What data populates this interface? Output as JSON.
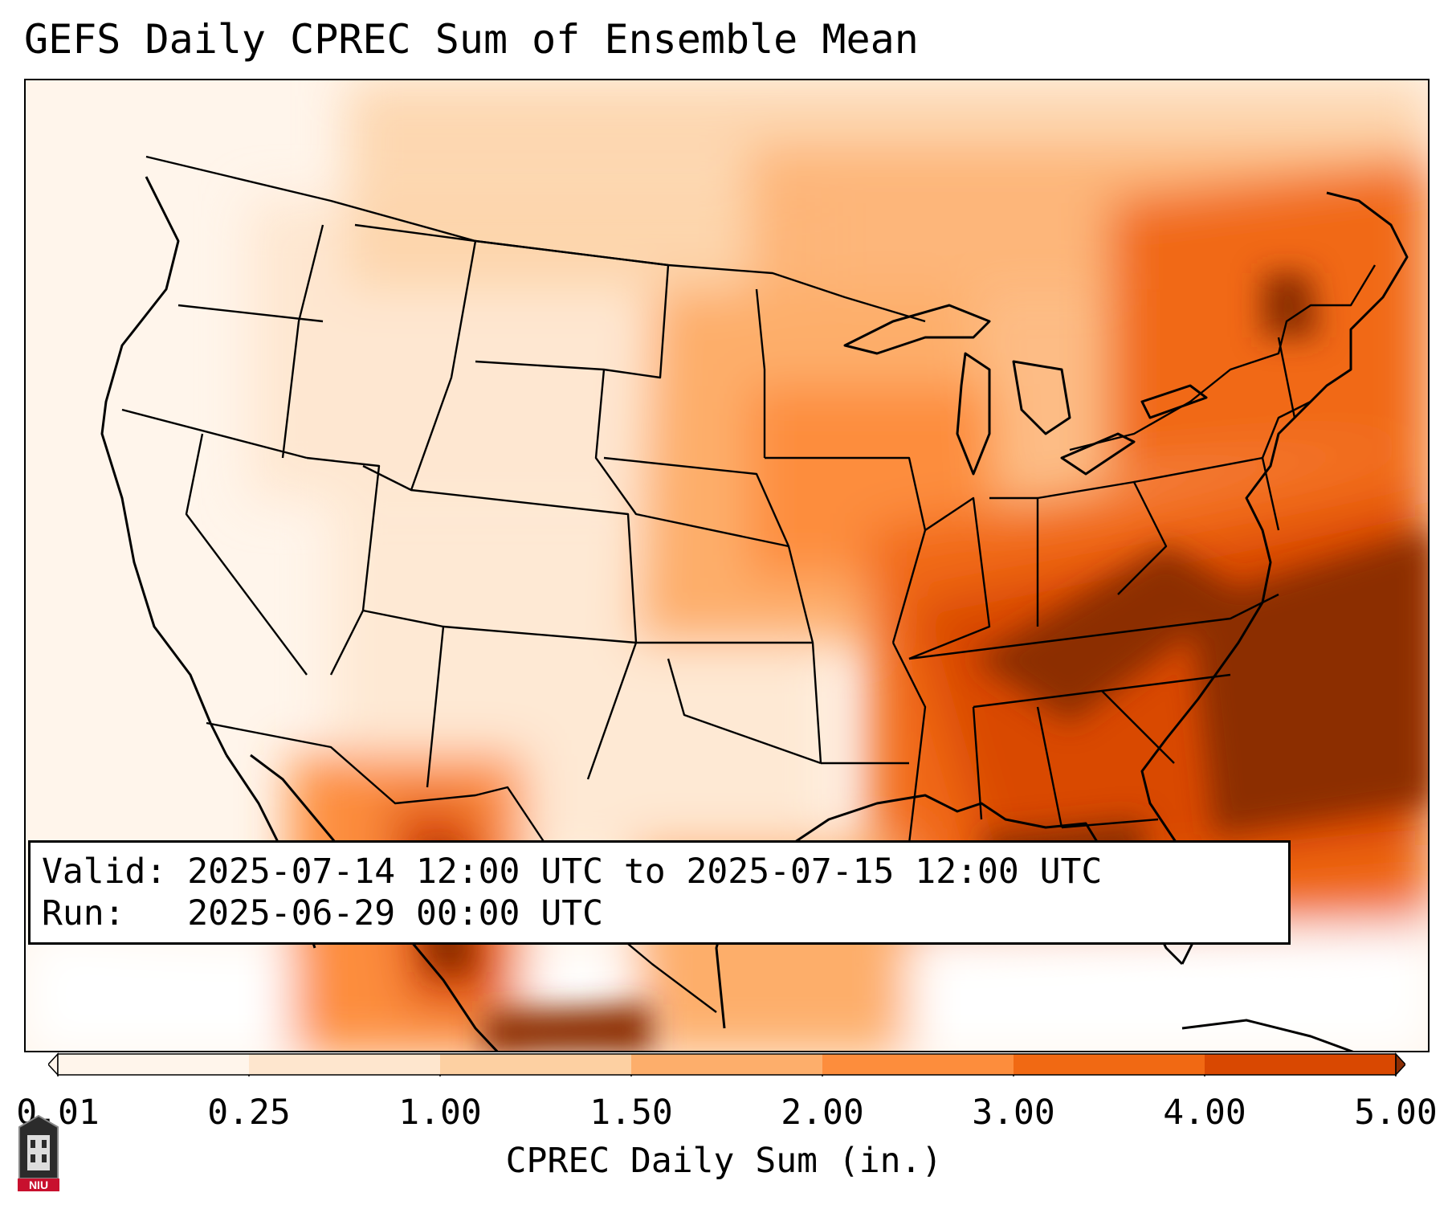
{
  "title": "GEFS Daily CPREC Sum of Ensemble Mean",
  "info": {
    "valid_line": "Valid: 2025-07-14 12:00 UTC to 2025-07-15 12:00 UTC",
    "run_line": "Run:   2025-06-29 00:00 UTC"
  },
  "colorbar": {
    "label": "CPREC Daily Sum (in.)",
    "ticks": [
      "0.01",
      "0.25",
      "1.00",
      "1.50",
      "2.00",
      "3.00",
      "4.00",
      "5.00"
    ],
    "colors": [
      "#fff5eb",
      "#fee6ce",
      "#fdd0a2",
      "#fdae6b",
      "#fd8d3c",
      "#f16913",
      "#d94801",
      "#8c2d04"
    ],
    "extend": "both"
  },
  "logo": {
    "text": "NIU",
    "icon": "university-seal-icon"
  },
  "colors": {
    "frame": "#000000",
    "border_lines": "#000000",
    "background": "#ffffff"
  }
}
